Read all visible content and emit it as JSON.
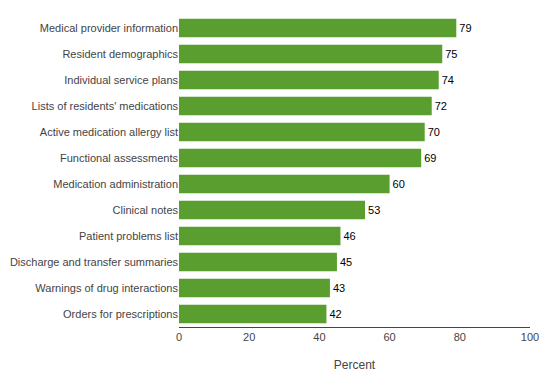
{
  "chart_data": {
    "type": "bar",
    "orientation": "horizontal",
    "categories": [
      "Orders for prescriptions",
      "Warnings of drug interactions",
      "Discharge and transfer summaries",
      "Patient problems list",
      "Clinical notes",
      "Medication administration",
      "Functional assessments",
      "Active medication allergy list",
      "Lists of residents' medications",
      "Individual service plans",
      "Resident demographics",
      "Medical provider information"
    ],
    "values": [
      42,
      43,
      45,
      46,
      53,
      60,
      69,
      70,
      72,
      74,
      75,
      79
    ],
    "color": "#5a9e2f",
    "xlabel": "Percent",
    "xlim": [
      0,
      100
    ],
    "xticks": [
      0,
      20,
      40,
      60,
      80,
      100
    ],
    "data_labels": true,
    "grid": false
  }
}
